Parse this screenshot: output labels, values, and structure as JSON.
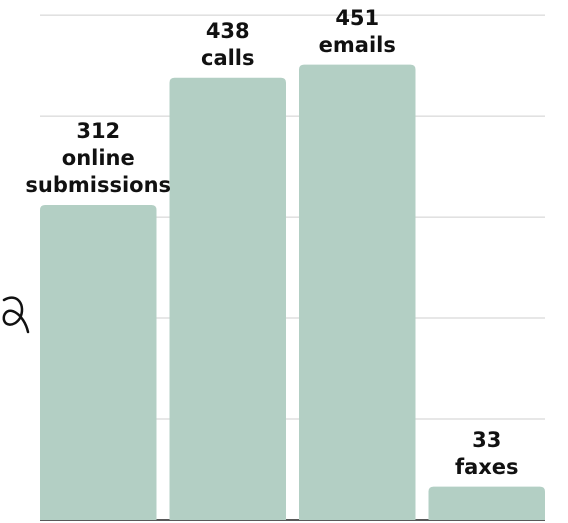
{
  "chart_data": {
    "type": "bar",
    "categories": [
      "online submissions",
      "calls",
      "emails",
      "faxes"
    ],
    "values": [
      312,
      438,
      451,
      33
    ],
    "color": "#b3cfc4",
    "ylim": [
      0,
      515
    ],
    "yticks": [
      0,
      100,
      200,
      300,
      400,
      500
    ],
    "grid": true
  }
}
